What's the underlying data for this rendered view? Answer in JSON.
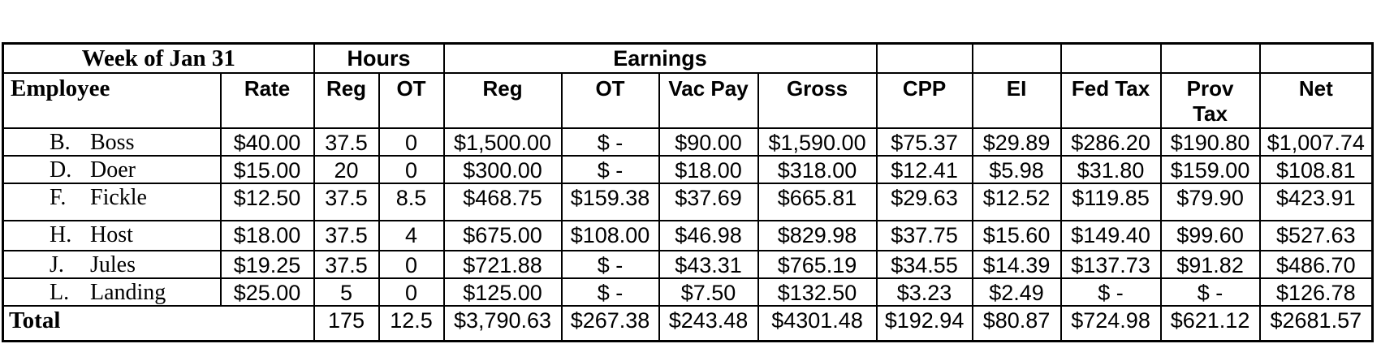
{
  "table": {
    "top_header": {
      "week_label": "Week of Jan 31",
      "hours_label": "Hours",
      "earnings_label": "Earnings"
    },
    "columns": {
      "employee": "Employee",
      "rate": "Rate",
      "reg_hours": "Reg",
      "ot_hours": "OT",
      "reg_earnings": "Reg",
      "ot_earnings": "OT",
      "vac_pay": "Vac Pay",
      "gross": "Gross",
      "cpp": "CPP",
      "ei": "EI",
      "fed_tax": "Fed Tax",
      "prov_tax": "Prov Tax",
      "net": "Net"
    },
    "rows": [
      {
        "initial": "B.",
        "name": "Boss",
        "rate": "$40.00",
        "reg_hours": "37.5",
        "ot_hours": "0",
        "reg_earnings": "$1,500.00",
        "ot_earnings": "$ -",
        "vac_pay": "$90.00",
        "gross": "$1,590.00",
        "cpp": "$75.37",
        "ei": "$29.89",
        "fed_tax": "$286.20",
        "prov_tax": "$190.80",
        "net": "$1,007.74"
      },
      {
        "initial": "D.",
        "name": "Doer",
        "rate": "$15.00",
        "reg_hours": "20",
        "ot_hours": "0",
        "reg_earnings": "$300.00",
        "ot_earnings": "$ -",
        "vac_pay": "$18.00",
        "gross": "$318.00",
        "cpp": "$12.41",
        "ei": "$5.98",
        "fed_tax": "$31.80",
        "prov_tax": "$159.00",
        "net": "$108.81"
      },
      {
        "initial": "F.",
        "name": "Fickle",
        "rate": "$12.50",
        "reg_hours": "37.5",
        "ot_hours": "8.5",
        "reg_earnings": "$468.75",
        "ot_earnings": "$159.38",
        "vac_pay": "$37.69",
        "gross": "$665.81",
        "cpp": "$29.63",
        "ei": "$12.52",
        "fed_tax": "$119.85",
        "prov_tax": "$79.90",
        "net": "$423.91"
      },
      {
        "initial": "H.",
        "name": "Host",
        "rate": "$18.00",
        "reg_hours": "37.5",
        "ot_hours": "4",
        "reg_earnings": "$675.00",
        "ot_earnings": "$108.00",
        "vac_pay": "$46.98",
        "gross": "$829.98",
        "cpp": "$37.75",
        "ei": "$15.60",
        "fed_tax": "$149.40",
        "prov_tax": "$99.60",
        "net": "$527.63"
      },
      {
        "initial": "J.",
        "name": "Jules",
        "rate": "$19.25",
        "reg_hours": "37.5",
        "ot_hours": "0",
        "reg_earnings": "$721.88",
        "ot_earnings": "$ -",
        "vac_pay": "$43.31",
        "gross": "$765.19",
        "cpp": "$34.55",
        "ei": "$14.39",
        "fed_tax": "$137.73",
        "prov_tax": "$91.82",
        "net": "$486.70"
      },
      {
        "initial": "L.",
        "name": "Landing",
        "rate": "$25.00",
        "reg_hours": "5",
        "ot_hours": "0",
        "reg_earnings": "$125.00",
        "ot_earnings": "$ -",
        "vac_pay": "$7.50",
        "gross": "$132.50",
        "cpp": "$3.23",
        "ei": "$2.49",
        "fed_tax": "$ -",
        "prov_tax": "$ -",
        "net": "$126.78"
      }
    ],
    "total": {
      "label": "Total",
      "reg_hours": "175",
      "ot_hours": "12.5",
      "reg_earnings": "$3,790.63",
      "ot_earnings": "$267.38",
      "vac_pay": "$243.48",
      "gross": "$4301.48",
      "cpp": "$192.94",
      "ei": "$80.87",
      "fed_tax": "$724.98",
      "prov_tax": "$621.12",
      "net": "$2681.57"
    }
  }
}
